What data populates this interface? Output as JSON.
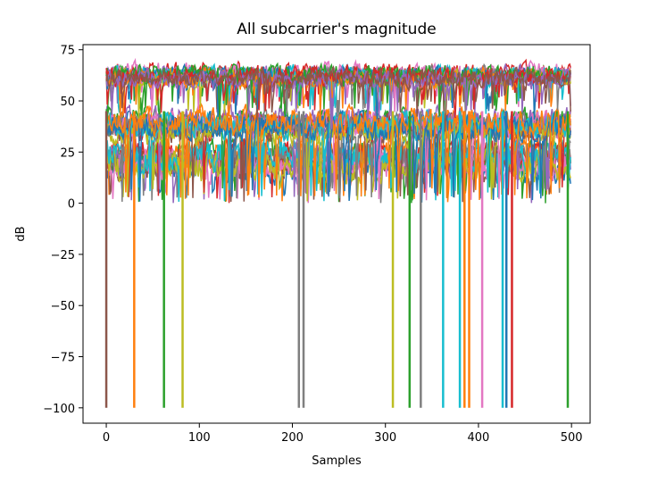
{
  "chart_data": {
    "type": "line",
    "title": "All subcarrier's magnitude",
    "xlabel": "Samples",
    "ylabel": "dB",
    "xlim": [
      -25,
      520
    ],
    "ylim": [
      -107.5,
      77.5
    ],
    "x_ticks": [
      0,
      100,
      200,
      300,
      400,
      500
    ],
    "y_ticks": [
      75,
      50,
      25,
      0,
      -25,
      -50,
      -75,
      -100
    ],
    "num_samples": 500,
    "grid": false,
    "legend": "none",
    "colors": [
      "#1f77b4",
      "#ff7f0e",
      "#2ca02c",
      "#d62728",
      "#9467bd",
      "#8c564b",
      "#e377c2",
      "#7f7f7f",
      "#bcbd22",
      "#17becf"
    ],
    "series_groups": [
      {
        "band": "high",
        "mean_db": 62,
        "spread_db": 7,
        "count": 14
      },
      {
        "band": "mid",
        "mean_db": 38,
        "spread_db": 10,
        "count": 12
      },
      {
        "band": "low",
        "mean_db": 22,
        "spread_db": 12,
        "count": 10
      }
    ],
    "dropouts": [
      {
        "x": 0,
        "color": "#8c564b"
      },
      {
        "x": 30,
        "color": "#ff7f0e"
      },
      {
        "x": 62,
        "color": "#2ca02c"
      },
      {
        "x": 82,
        "color": "#bcbd22"
      },
      {
        "x": 207,
        "color": "#7f7f7f"
      },
      {
        "x": 212,
        "color": "#7f7f7f"
      },
      {
        "x": 308,
        "color": "#bcbd22"
      },
      {
        "x": 326,
        "color": "#2ca02c"
      },
      {
        "x": 338,
        "color": "#7f7f7f"
      },
      {
        "x": 362,
        "color": "#17becf"
      },
      {
        "x": 380,
        "color": "#17becf"
      },
      {
        "x": 385,
        "color": "#ff7f0e"
      },
      {
        "x": 390,
        "color": "#ff7f0e"
      },
      {
        "x": 404,
        "color": "#e377c2"
      },
      {
        "x": 426,
        "color": "#17becf"
      },
      {
        "x": 430,
        "color": "#1f77b4"
      },
      {
        "x": 436,
        "color": "#d62728"
      },
      {
        "x": 496,
        "color": "#2ca02c"
      }
    ],
    "dropout_value_db": -100
  }
}
